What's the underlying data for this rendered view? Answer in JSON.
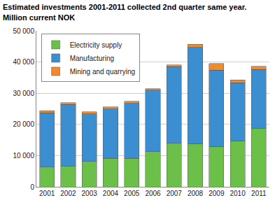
{
  "chart_data": {
    "type": "bar",
    "title": "Estimated investments 2001-2011 collected 2nd quarter same year.",
    "subtitle": "Million current NOK",
    "stacked": true,
    "grid": true,
    "legend": "top-left",
    "categories": [
      "2001",
      "2002",
      "2003",
      "2004",
      "2005",
      "2006",
      "2007",
      "2008",
      "2009",
      "2010",
      "2011"
    ],
    "series": [
      {
        "name": "Electricity supply",
        "color": "#6cc04a",
        "values": [
          6300,
          6600,
          8100,
          9100,
          9100,
          11300,
          14000,
          13800,
          13000,
          14700,
          18700
        ]
      },
      {
        "name": "Manufacturing",
        "color": "#3b8fd1",
        "values": [
          17400,
          19800,
          15300,
          15800,
          17600,
          19700,
          24500,
          30900,
          24400,
          18600,
          18900
        ]
      },
      {
        "name": "Mining and quarrying",
        "color": "#f28a2b",
        "values": [
          700,
          600,
          600,
          700,
          700,
          400,
          600,
          1000,
          2100,
          1000,
          1000
        ]
      }
    ],
    "ylim": [
      0,
      50000
    ],
    "yticks": [
      0,
      {
        "value": 10000,
        "label": "10 000"
      },
      {
        "value": 20000,
        "label": "20 000"
      },
      {
        "value": 30000,
        "label": "30 000"
      },
      {
        "value": 40000,
        "label": "40 000"
      },
      {
        "value": 50000,
        "label": "50 000"
      }
    ]
  }
}
